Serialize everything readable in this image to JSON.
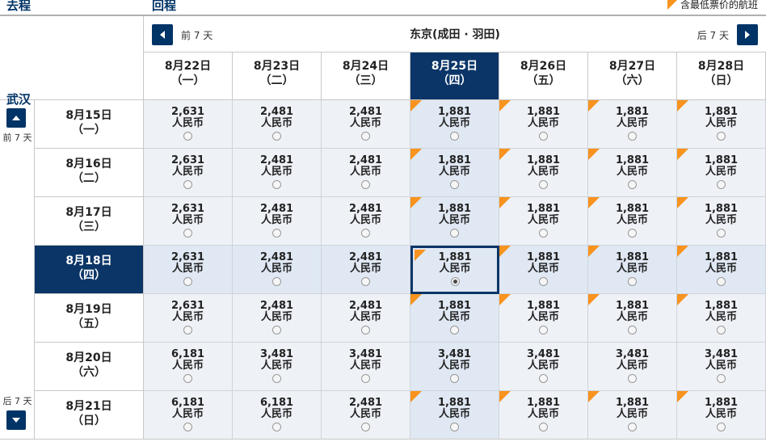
{
  "outbound_label": "去程",
  "return_label": "回程",
  "legend": "含最低票价的航班",
  "outbound_city": "武汉",
  "return_nav": {
    "prev": "前 7 天",
    "next": "后 7 天",
    "city": "东京(成田 · 羽田)"
  },
  "side_nav": {
    "prev": "前 7 天",
    "next": "后 7 天"
  },
  "return_dates": [
    {
      "date": "8月22日",
      "dow": "（一）"
    },
    {
      "date": "8月23日",
      "dow": "（二）"
    },
    {
      "date": "8月24日",
      "dow": "（三）"
    },
    {
      "date": "8月25日",
      "dow": "（四）"
    },
    {
      "date": "8月26日",
      "dow": "（五）"
    },
    {
      "date": "8月27日",
      "dow": "（六）"
    },
    {
      "date": "8月28日",
      "dow": "（日）"
    }
  ],
  "selected_return_index": 3,
  "outbound_dates": [
    {
      "date": "8月15日",
      "dow": "（一）"
    },
    {
      "date": "8月16日",
      "dow": "（二）"
    },
    {
      "date": "8月17日",
      "dow": "（三）"
    },
    {
      "date": "8月18日",
      "dow": "（四）"
    },
    {
      "date": "8月19日",
      "dow": "（五）"
    },
    {
      "date": "8月20日",
      "dow": "（六）"
    },
    {
      "date": "8月21日",
      "dow": "（日）"
    }
  ],
  "selected_outbound_index": 3,
  "currency": "人民币",
  "prices": [
    [
      "2,631",
      "2,481",
      "2,481",
      "1,881",
      "1,881",
      "1,881",
      "1,881"
    ],
    [
      "2,631",
      "2,481",
      "2,481",
      "1,881",
      "1,881",
      "1,881",
      "1,881"
    ],
    [
      "2,631",
      "2,481",
      "2,481",
      "1,881",
      "1,881",
      "1,881",
      "1,881"
    ],
    [
      "2,631",
      "2,481",
      "2,481",
      "1,881",
      "1,881",
      "1,881",
      "1,881"
    ],
    [
      "2,631",
      "2,481",
      "2,481",
      "1,881",
      "1,881",
      "1,881",
      "1,881"
    ],
    [
      "6,181",
      "3,481",
      "3,481",
      "3,481",
      "3,481",
      "3,481",
      "3,481"
    ],
    [
      "6,181",
      "6,181",
      "2,481",
      "1,881",
      "1,881",
      "1,881",
      "1,881"
    ]
  ],
  "cheapest_flags": [
    [
      false,
      false,
      false,
      true,
      true,
      true,
      true
    ],
    [
      false,
      false,
      false,
      true,
      true,
      true,
      true
    ],
    [
      false,
      false,
      false,
      true,
      true,
      true,
      true
    ],
    [
      false,
      false,
      false,
      true,
      true,
      true,
      true
    ],
    [
      false,
      false,
      false,
      true,
      true,
      true,
      true
    ],
    [
      false,
      false,
      false,
      false,
      false,
      false,
      false
    ],
    [
      false,
      false,
      false,
      true,
      true,
      true,
      true
    ]
  ],
  "colors": {
    "navy": "#0b3567",
    "cheap_marker": "#f7931e",
    "cell_bg": "#eef1f6"
  }
}
